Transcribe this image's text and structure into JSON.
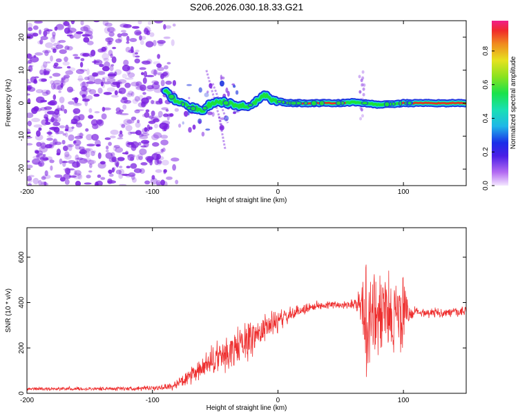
{
  "title": "S206.2026.030.18.33.G21",
  "colors": {
    "snr_line": "#ee2e2e",
    "scatter": "#7a1fe0",
    "band_outer": "#1c33e0",
    "band_mid": "#22d3e6",
    "band_inner": "#19e23a",
    "band_core": "#ef2a2a"
  },
  "chart_data": [
    {
      "id": "spectrogram",
      "type": "heatmap",
      "xlabel": "Height of straight line (km)",
      "ylabel": "Frequency (Hz)",
      "xlim": [
        -200,
        150
      ],
      "ylim": [
        -25,
        25
      ],
      "xticks": [
        -200,
        -100,
        0,
        100
      ],
      "xtick_labels": [
        "-200",
        "-100",
        "0",
        "100"
      ],
      "yticks": [
        -20,
        -10,
        0,
        10,
        20
      ],
      "ytick_labels": [
        "-20",
        "-10",
        "0",
        "10",
        "20"
      ],
      "noise_region_x": [
        -200,
        -86
      ],
      "dominant_frequency_track": {
        "x": [
          -90,
          -80,
          -70,
          -60,
          -50,
          -40,
          -30,
          -20,
          -15,
          -10,
          -5,
          0,
          10,
          20,
          30,
          40,
          50,
          60,
          70,
          80,
          90,
          100,
          110,
          120,
          130,
          140,
          150
        ],
        "y": [
          3.5,
          0.5,
          -1.5,
          -2.0,
          0.5,
          0.0,
          -1.0,
          -0.5,
          1.5,
          2.5,
          1.0,
          0.5,
          0.0,
          0.0,
          0.0,
          0.0,
          0.0,
          0.3,
          0.0,
          -0.5,
          -0.3,
          0.0,
          0.0,
          0.0,
          0.0,
          0.0,
          0.0
        ],
        "amplitude": [
          0.3,
          0.35,
          0.4,
          0.4,
          0.45,
          0.5,
          0.6,
          0.6,
          0.65,
          0.7,
          0.7,
          0.75,
          0.9,
          0.92,
          0.93,
          0.93,
          0.9,
          0.7,
          0.6,
          0.65,
          0.7,
          0.9,
          0.95,
          0.95,
          0.95,
          0.95,
          0.95
        ]
      },
      "colorbar": {
        "label": "Normalized spectral amplitude",
        "range": [
          0,
          0.98
        ],
        "ticks": [
          0.0,
          0.2,
          0.4,
          0.6,
          0.8
        ],
        "tick_labels": [
          "0.0",
          "0.2",
          "0.4",
          "0.6",
          "0.8"
        ]
      }
    },
    {
      "id": "snr",
      "type": "line",
      "xlabel": "Height of straight line (km)",
      "ylabel": "SNR (10 * v/v)",
      "xlim": [
        -200,
        150
      ],
      "ylim": [
        0,
        730
      ],
      "xticks": [
        -200,
        -100,
        0,
        100
      ],
      "xtick_labels": [
        "-200",
        "-100",
        "0",
        "100"
      ],
      "yticks": [
        0,
        200,
        400,
        600
      ],
      "ytick_labels": [
        "0",
        "200",
        "400",
        "600"
      ],
      "series": [
        {
          "name": "SNR",
          "envelope": {
            "x": [
              -200,
              -150,
              -100,
              -85,
              -70,
              -60,
              -50,
              -40,
              -30,
              -20,
              -10,
              0,
              10,
              20,
              30,
              40,
              50,
              60,
              65,
              70,
              75,
              80,
              85,
              90,
              95,
              100,
              105,
              110,
              120,
              130,
              140,
              150
            ],
            "mean": [
              20,
              20,
              22,
              30,
              70,
              110,
              150,
              175,
              210,
              250,
              290,
              320,
              345,
              370,
              385,
              390,
              390,
              395,
              400,
              330,
              330,
              350,
              360,
              350,
              330,
              350,
              350,
              360,
              355,
              355,
              355,
              360
            ],
            "spread": [
              10,
              10,
              12,
              20,
              45,
              60,
              90,
              110,
              110,
              100,
              80,
              60,
              40,
              30,
              25,
              20,
              20,
              25,
              80,
              320,
              300,
              240,
              220,
              200,
              230,
              220,
              40,
              25,
              25,
              25,
              25,
              25
            ]
          }
        }
      ]
    }
  ]
}
